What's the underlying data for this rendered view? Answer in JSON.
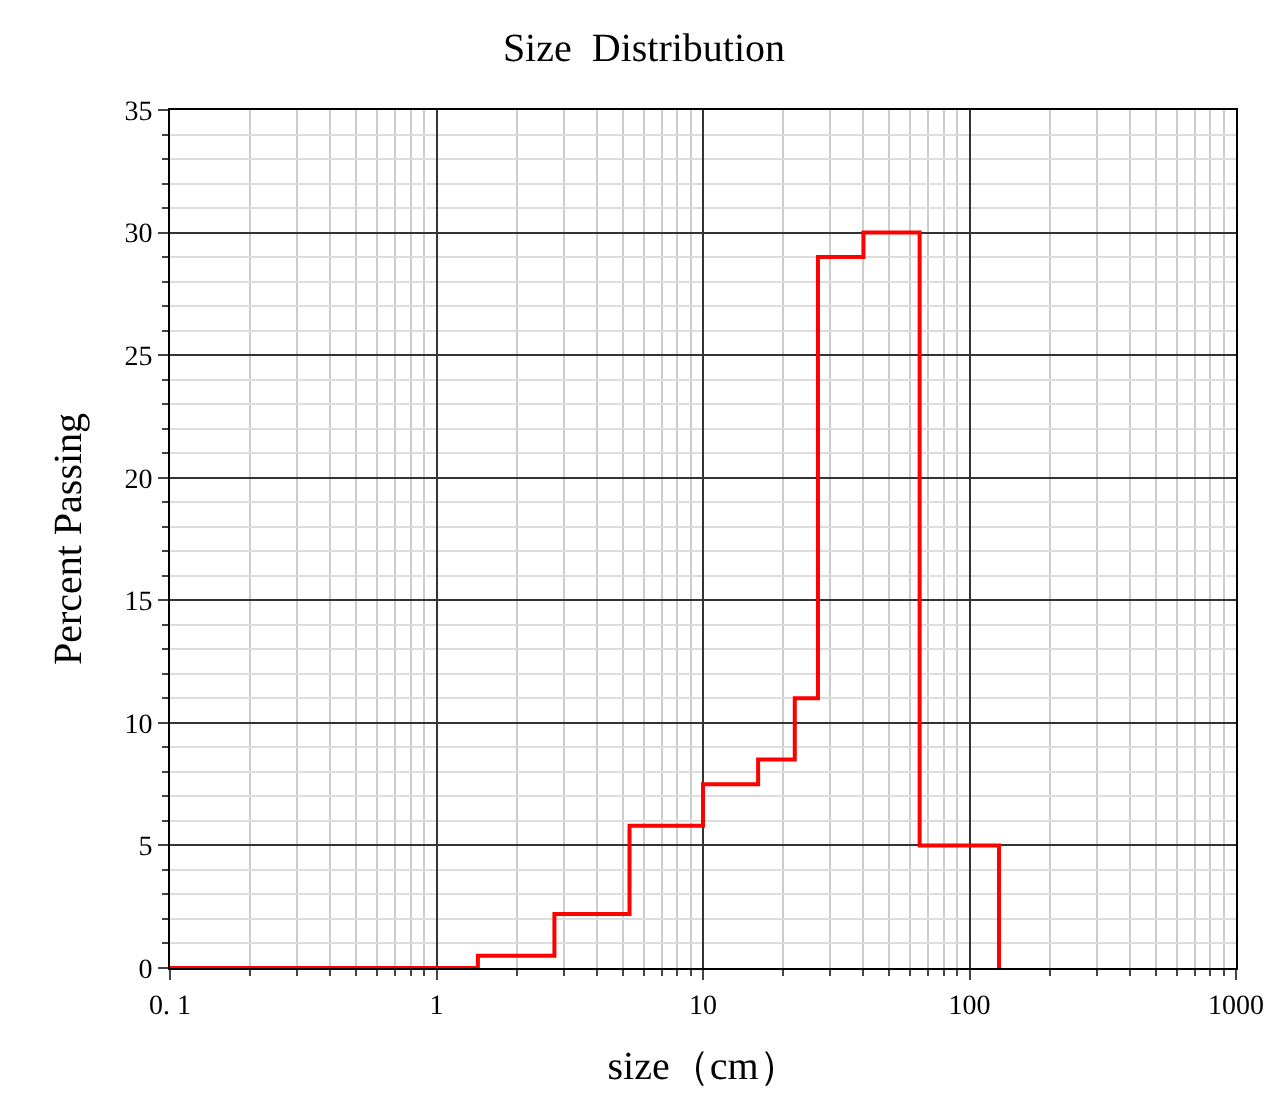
{
  "chart_data": {
    "type": "step",
    "title": "Size  Distribution",
    "xlabel": "size（cm）",
    "ylabel": "Percent Passing",
    "log": "x",
    "x": [
      0.1,
      1.43,
      2.77,
      5.3,
      10,
      16.1,
      22.1,
      27,
      40,
      65,
      129
    ],
    "series": [
      {
        "color": "#ff0000",
        "values": [
          0,
          0.5,
          2.2,
          5.8,
          7.5,
          8.5,
          11,
          29,
          30,
          5,
          0
        ]
      }
    ],
    "xlim": [
      0.1,
      1000
    ],
    "xticks": [
      {
        "value": 0.1,
        "label": "0. 1"
      },
      1,
      10,
      100,
      1000
    ],
    "ylim": [
      0,
      35
    ],
    "yticks": [
      0,
      5,
      10,
      15,
      20,
      25,
      30,
      35
    ],
    "grid": true
  }
}
